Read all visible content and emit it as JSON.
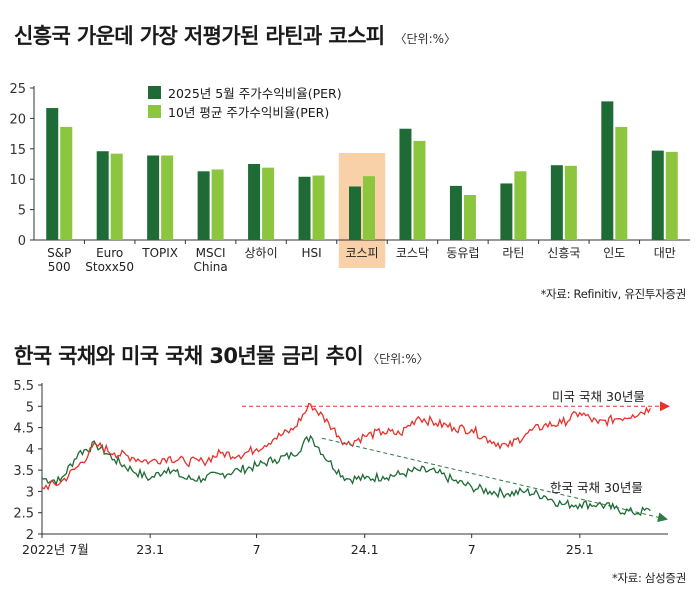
{
  "chart1": {
    "title": "신흥국 가운데 가장 저평가된 라틴과 코스피",
    "unit": "〈단위:%〉",
    "source": "*자료: Refinitiv, 유진투자증권",
    "colors": {
      "current": "#1e6b36",
      "average": "#8cc63f",
      "highlight": "#f7c99a"
    },
    "chart_data": {
      "type": "bar",
      "categories": [
        "S&P 500",
        "Euro Stoxx50",
        "TOPIX",
        "MSCI China",
        "상하이",
        "HSI",
        "코스피",
        "코스닥",
        "동유럽",
        "라틴",
        "신흥국",
        "인도",
        "대만"
      ],
      "series": [
        {
          "name": "2025년 5월 주가수익비율(PER)",
          "values": [
            21.7,
            14.6,
            13.9,
            11.3,
            12.5,
            10.4,
            8.8,
            18.3,
            8.9,
            9.3,
            12.3,
            22.8,
            14.7
          ]
        },
        {
          "name": "10년 평균 주가수익비율(PER)",
          "values": [
            18.6,
            14.2,
            13.9,
            11.6,
            11.9,
            10.6,
            10.5,
            16.3,
            7.4,
            11.3,
            12.2,
            18.6,
            14.5
          ]
        }
      ],
      "ylim": [
        0,
        25
      ],
      "yticks": [
        "0",
        "5",
        "10",
        "15",
        "20",
        "25"
      ],
      "highlight": "코스피",
      "legend": "top-left"
    }
  },
  "chart2": {
    "title": "한국 국채와 미국 국채 30년물 금리 추이",
    "unit": "〈단위:%〉",
    "source": "*자료: 삼성증권",
    "colors": {
      "us": "#e8312a",
      "kr": "#1e6b36",
      "us_trend": "#e8312a",
      "kr_trend": "#2f7a45"
    },
    "chart_data": {
      "type": "line",
      "x_labels": [
        "2022년 7월",
        "23.1",
        "7",
        "24.1",
        "7",
        "25.1"
      ],
      "ylim": [
        2,
        5.5
      ],
      "yticks": [
        "2",
        "2.5",
        "3",
        "3.5",
        "4",
        "4.5",
        "5",
        "5.5"
      ],
      "series": [
        {
          "name": "미국 국채 30년물",
          "dates": [
            "2022-07",
            "2022-08",
            "2022-09",
            "2022-10",
            "2022-11",
            "2022-12",
            "2023-01",
            "2023-02",
            "2023-03",
            "2023-04",
            "2023-05",
            "2023-06",
            "2023-07",
            "2023-08",
            "2023-09",
            "2023-10",
            "2023-11",
            "2023-12",
            "2024-01",
            "2024-02",
            "2024-03",
            "2024-04",
            "2024-05",
            "2024-06",
            "2024-07",
            "2024-08",
            "2024-09",
            "2024-10",
            "2024-11",
            "2024-12",
            "2025-01",
            "2025-02",
            "2025-03",
            "2025-04",
            "2025-05"
          ],
          "values": [
            3.1,
            3.2,
            3.6,
            4.1,
            3.9,
            3.8,
            3.7,
            3.8,
            3.7,
            3.7,
            3.9,
            3.85,
            4.0,
            4.25,
            4.45,
            5.05,
            4.6,
            4.1,
            4.3,
            4.4,
            4.35,
            4.75,
            4.6,
            4.5,
            4.45,
            4.2,
            4.05,
            4.35,
            4.55,
            4.6,
            4.85,
            4.6,
            4.7,
            4.8,
            4.95
          ]
        },
        {
          "name": "한국 국채 30년물",
          "dates": [
            "2022-07",
            "2022-08",
            "2022-09",
            "2022-10",
            "2022-11",
            "2022-12",
            "2023-01",
            "2023-02",
            "2023-03",
            "2023-04",
            "2023-05",
            "2023-06",
            "2023-07",
            "2023-08",
            "2023-09",
            "2023-10",
            "2023-11",
            "2023-12",
            "2024-01",
            "2024-02",
            "2024-03",
            "2024-04",
            "2024-05",
            "2024-06",
            "2024-07",
            "2024-08",
            "2024-09",
            "2024-10",
            "2024-11",
            "2024-12",
            "2025-01",
            "2025-02",
            "2025-03",
            "2025-04",
            "2025-05"
          ],
          "values": [
            3.3,
            3.25,
            3.9,
            4.1,
            3.75,
            3.5,
            3.3,
            3.55,
            3.3,
            3.3,
            3.4,
            3.5,
            3.6,
            3.75,
            3.85,
            4.3,
            3.7,
            3.3,
            3.3,
            3.35,
            3.4,
            3.5,
            3.45,
            3.25,
            3.1,
            3.0,
            2.95,
            3.0,
            2.9,
            2.7,
            2.7,
            2.7,
            2.6,
            2.5,
            2.55
          ]
        }
      ]
    }
  }
}
